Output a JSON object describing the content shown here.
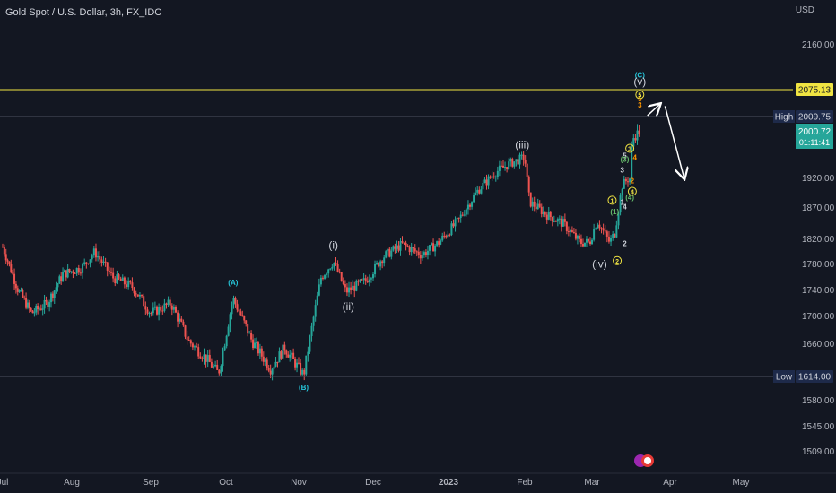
{
  "header": {
    "title": "Gold Spot / U.S. Dollar, 3h, FX_IDC",
    "currency": "USD"
  },
  "colors": {
    "background": "#131722",
    "up": "#26a69a",
    "down": "#ef5350",
    "resistance": "#f0e442",
    "accent_cyan": "#26c6da",
    "wave_orange": "#ff9800",
    "wave_yellow": "#f0e442",
    "wave_green": "#66bb6a",
    "text": "#d1d4dc"
  },
  "chart_data": {
    "type": "candlestick",
    "title": "Gold Spot / U.S. Dollar, 3h, FX_IDC",
    "yunit": "USD",
    "y_ticks": [
      "2160.00",
      "1920.00",
      "1870.00",
      "1820.00",
      "1780.00",
      "1740.00",
      "1700.00",
      "1660.00",
      "1580.00",
      "1545.00",
      "1509.00"
    ],
    "x_ticks": [
      "Jul",
      "Aug",
      "Sep",
      "Oct",
      "Nov",
      "Dec",
      "2023",
      "Feb",
      "Mar",
      "Apr",
      "May"
    ],
    "price_labels": {
      "resistance": "2075.13",
      "high_label": "High",
      "high_value": "2009.75",
      "current_value": "2000.72",
      "countdown": "01:11:41",
      "low_label": "Low",
      "low_value": "1614.00"
    },
    "price_path": [
      [
        "Jul 1",
        1808
      ],
      [
        "Jul 8",
        1740
      ],
      [
        "Jul 14",
        1705
      ],
      [
        "Jul 21",
        1720
      ],
      [
        "Jul 28",
        1765
      ],
      [
        "Aug 5",
        1775
      ],
      [
        "Aug 10",
        1800
      ],
      [
        "Aug 17",
        1760
      ],
      [
        "Aug 25",
        1745
      ],
      [
        "Sep 1",
        1705
      ],
      [
        "Sep 9",
        1720
      ],
      [
        "Sep 16",
        1665
      ],
      [
        "Sep 23",
        1640
      ],
      [
        "Sep 28",
        1618
      ],
      [
        "Oct 4",
        1728
      ],
      [
        "Oct 12",
        1665
      ],
      [
        "Oct 20",
        1625
      ],
      [
        "Oct 26",
        1655
      ],
      [
        "Nov 3",
        1616
      ],
      [
        "Nov 10",
        1760
      ],
      [
        "Nov 15",
        1785
      ],
      [
        "Nov 20",
        1738
      ],
      [
        "Nov 28",
        1755
      ],
      [
        "Dec 5",
        1792
      ],
      [
        "Dec 13",
        1812
      ],
      [
        "Dec 21",
        1795
      ],
      [
        "Dec 28",
        1815
      ],
      [
        "Jan 5",
        1850
      ],
      [
        "Jan 13",
        1900
      ],
      [
        "Jan 20",
        1930
      ],
      [
        "Jan 26",
        1945
      ],
      [
        "Feb 1",
        1955
      ],
      [
        "Feb 3",
        1880
      ],
      [
        "Feb 10",
        1860
      ],
      [
        "Feb 17",
        1845
      ],
      [
        "Feb 24",
        1815
      ],
      [
        "Feb 28",
        1815
      ],
      [
        "Mar 3",
        1850
      ],
      [
        "Mar 8",
        1815
      ],
      [
        "Mar 10",
        1830
      ],
      [
        "Mar 13",
        1908
      ],
      [
        "Mar 15",
        1918
      ],
      [
        "Mar 16",
        1920
      ],
      [
        "Mar 17",
        1985
      ],
      [
        "Mar 20",
        2000
      ]
    ],
    "wave_labels": [
      {
        "text": "(A)",
        "date": "Oct 4",
        "price": 1748,
        "color": "accent_cyan",
        "size": "small"
      },
      {
        "text": "(B)",
        "date": "Nov 3",
        "price": 1595,
        "color": "accent_cyan",
        "size": "small"
      },
      {
        "text": "(C)",
        "date": "Mar 20",
        "price": 2098,
        "color": "accent_cyan",
        "size": "small"
      },
      {
        "text": "(i)",
        "date": "Nov 15",
        "price": 1805,
        "color": "text",
        "size": "large"
      },
      {
        "text": "(ii)",
        "date": "Nov 21",
        "price": 1710,
        "color": "text",
        "size": "large"
      },
      {
        "text": "(iii)",
        "date": "Jan 31",
        "price": 1970,
        "color": "text",
        "size": "large"
      },
      {
        "text": "(iv)",
        "date": "Mar 4",
        "price": 1775,
        "color": "text",
        "size": "large"
      },
      {
        "text": "(v)",
        "date": "Mar 20",
        "price": 2084,
        "color": "text",
        "size": "large"
      },
      {
        "text": "1",
        "date": "Mar 13",
        "price": 1875,
        "color": "text",
        "size": "small"
      },
      {
        "text": "2",
        "date": "Mar 14",
        "price": 1809,
        "color": "text",
        "size": "small"
      },
      {
        "text": "3",
        "date": "Mar 13",
        "price": 1930,
        "color": "text",
        "size": "small"
      },
      {
        "text": "4",
        "date": "Mar 14",
        "price": 1868,
        "color": "text",
        "size": "small"
      },
      {
        "text": "5",
        "date": "Mar 14",
        "price": 1954,
        "color": "text",
        "size": "small"
      },
      {
        "text": "3",
        "date": "Mar 20",
        "price": 2031,
        "color": "wave_orange",
        "size": "small"
      },
      {
        "text": "4",
        "date": "Mar 18",
        "price": 1951,
        "color": "wave_orange",
        "size": "small"
      },
      {
        "text": "5",
        "date": "Mar 20",
        "price": 2047,
        "color": "wave_orange",
        "size": "small"
      },
      {
        "text": "2",
        "date": "Mar 17",
        "price": 1912,
        "color": "wave_orange",
        "size": "small"
      },
      {
        "text": "(4)",
        "date": "Mar 16",
        "price": 1884,
        "color": "wave_green",
        "size": "small"
      },
      {
        "text": "(3)",
        "date": "Mar 14",
        "price": 1948,
        "color": "wave_green",
        "size": "small"
      },
      {
        "text": "(1)",
        "date": "Mar 10",
        "price": 1860,
        "color": "wave_green",
        "size": "small"
      }
    ],
    "circled_labels": [
      {
        "text": "1",
        "date": "Mar 9",
        "price": 1883,
        "color": "wave_yellow"
      },
      {
        "text": "2",
        "date": "Mar 11",
        "price": 1786,
        "color": "wave_yellow"
      },
      {
        "text": "3",
        "date": "Mar 16",
        "price": 1970,
        "color": "wave_yellow"
      },
      {
        "text": "4",
        "date": "Mar 17",
        "price": 1898,
        "color": "wave_yellow"
      },
      {
        "text": "5",
        "date": "Mar 20",
        "price": 2063,
        "color": "wave_yellow"
      }
    ],
    "projection_arrows": [
      {
        "from": [
          "Mar 23",
          2012
        ],
        "to": [
          "Mar 28",
          2040
        ]
      },
      {
        "from": [
          "Mar 30",
          2035
        ],
        "to": [
          "Apr 7",
          1920
        ]
      }
    ]
  }
}
